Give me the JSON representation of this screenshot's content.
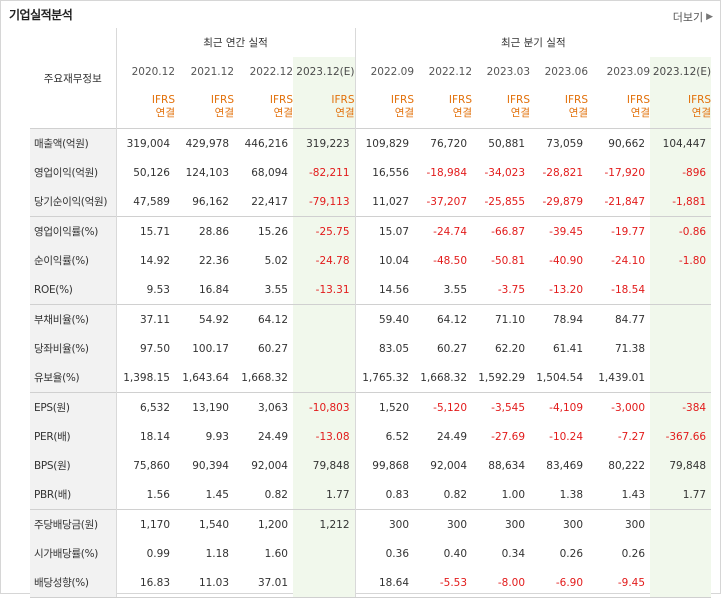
{
  "title": "기업실적분석",
  "more_label": "더보기",
  "header": {
    "label_col": "주요재무정보",
    "annual_group": "최근 연간 실적",
    "quarter_group": "최근 분기 실적"
  },
  "periods": [
    "2020.12",
    "2021.12",
    "2022.12",
    "2023.12(E)",
    "2022.09",
    "2022.12",
    "2023.03",
    "2023.06",
    "2023.09",
    "2023.12(E)"
  ],
  "ifrs": {
    "line1": "IFRS",
    "line2": "연결"
  },
  "rows": [
    {
      "label": "매출액(억원)",
      "values": [
        "319,004",
        "429,978",
        "446,216",
        "319,223",
        "109,829",
        "76,720",
        "50,881",
        "73,059",
        "90,662",
        "104,447"
      ]
    },
    {
      "label": "영업이익(억원)",
      "values": [
        "50,126",
        "124,103",
        "68,094",
        "-82,211",
        "16,556",
        "-18,984",
        "-34,023",
        "-28,821",
        "-17,920",
        "-896"
      ]
    },
    {
      "label": "당기순이익(억원)",
      "values": [
        "47,589",
        "96,162",
        "22,417",
        "-79,113",
        "11,027",
        "-37,207",
        "-25,855",
        "-29,879",
        "-21,847",
        "-1,881"
      ]
    },
    {
      "label": "영업이익률(%)",
      "values": [
        "15.71",
        "28.86",
        "15.26",
        "-25.75",
        "15.07",
        "-24.74",
        "-66.87",
        "-39.45",
        "-19.77",
        "-0.86"
      ]
    },
    {
      "label": "순이익률(%)",
      "values": [
        "14.92",
        "22.36",
        "5.02",
        "-24.78",
        "10.04",
        "-48.50",
        "-50.81",
        "-40.90",
        "-24.10",
        "-1.80"
      ]
    },
    {
      "label": "ROE(%)",
      "values": [
        "9.53",
        "16.84",
        "3.55",
        "-13.31",
        "14.56",
        "3.55",
        "-3.75",
        "-13.20",
        "-18.54",
        ""
      ]
    },
    {
      "label": "부채비율(%)",
      "values": [
        "37.11",
        "54.92",
        "64.12",
        "",
        "59.40",
        "64.12",
        "71.10",
        "78.94",
        "84.77",
        ""
      ]
    },
    {
      "label": "당좌비율(%)",
      "values": [
        "97.50",
        "100.17",
        "60.27",
        "",
        "83.05",
        "60.27",
        "62.20",
        "61.41",
        "71.38",
        ""
      ]
    },
    {
      "label": "유보율(%)",
      "values": [
        "1,398.15",
        "1,643.64",
        "1,668.32",
        "",
        "1,765.32",
        "1,668.32",
        "1,592.29",
        "1,504.54",
        "1,439.01",
        ""
      ]
    },
    {
      "label": "EPS(원)",
      "values": [
        "6,532",
        "13,190",
        "3,063",
        "-10,803",
        "1,520",
        "-5,120",
        "-3,545",
        "-4,109",
        "-3,000",
        "-384"
      ]
    },
    {
      "label": "PER(배)",
      "values": [
        "18.14",
        "9.93",
        "24.49",
        "-13.08",
        "6.52",
        "24.49",
        "-27.69",
        "-10.24",
        "-7.27",
        "-367.66"
      ]
    },
    {
      "label": "BPS(원)",
      "values": [
        "75,860",
        "90,394",
        "92,004",
        "79,848",
        "99,868",
        "92,004",
        "88,634",
        "83,469",
        "80,222",
        "79,848"
      ]
    },
    {
      "label": "PBR(배)",
      "values": [
        "1.56",
        "1.45",
        "0.82",
        "1.77",
        "0.83",
        "0.82",
        "1.00",
        "1.38",
        "1.43",
        "1.77"
      ]
    },
    {
      "label": "주당배당금(원)",
      "values": [
        "1,170",
        "1,540",
        "1,200",
        "1,212",
        "300",
        "300",
        "300",
        "300",
        "300",
        ""
      ]
    },
    {
      "label": "시가배당률(%)",
      "values": [
        "0.99",
        "1.18",
        "1.60",
        "",
        "0.36",
        "0.40",
        "0.34",
        "0.26",
        "0.26",
        ""
      ]
    },
    {
      "label": "배당성향(%)",
      "values": [
        "16.83",
        "11.03",
        "37.01",
        "",
        "18.64",
        "-5.53",
        "-8.00",
        "-6.90",
        "-9.45",
        ""
      ]
    }
  ]
}
